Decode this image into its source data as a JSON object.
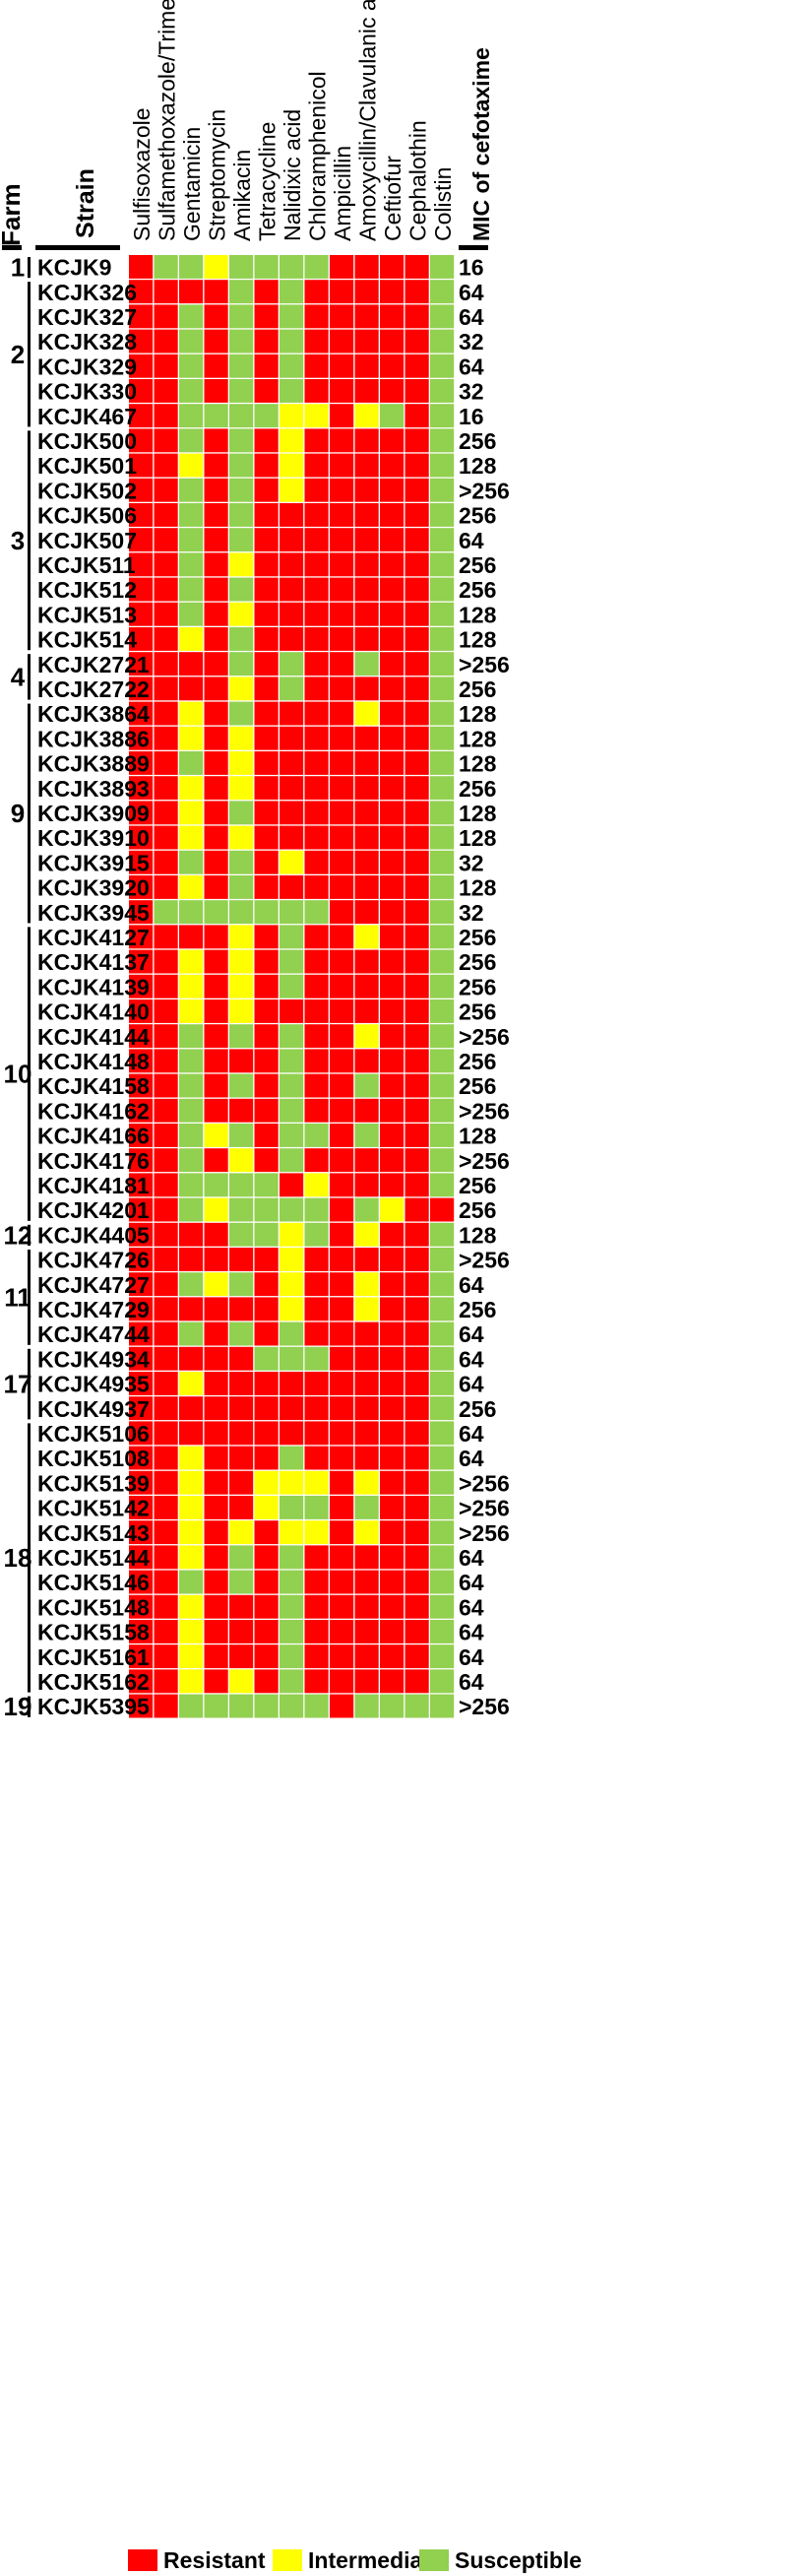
{
  "colors": {
    "Resistant": "#ff0000",
    "Intermediate": "#ffff00",
    "Susceptible": "#92d050",
    "grid": "#ffffff",
    "text": "#000000"
  },
  "headers": {
    "farm": "Farm",
    "strain": "Strain",
    "mic": "MIC of cefotaxime"
  },
  "legend": [
    "Resistant",
    "Intermediate",
    "Susceptible"
  ],
  "chart_data": {
    "type": "heatmap",
    "title": "",
    "code_map": {
      "R": "Resistant",
      "I": "Intermediate",
      "S": "Susceptible"
    },
    "columns": [
      "Sulfisoxazole",
      "Sulfamethoxazole/Trimethoprim",
      "Gentamicin",
      "Streptomycin",
      "Amikacin",
      "Tetracycline",
      "Nalidixic acid",
      "Chloramphenicol",
      "Ampicillin",
      "Amoxycillin/Clavulanic acid",
      "Ceftiofur",
      "Cephalothin",
      "Colistin"
    ],
    "farms": [
      {
        "farm": "1",
        "rows": [
          {
            "strain": "KCJK9",
            "values": "RSSISSSSRRRRS",
            "mic": "16"
          }
        ]
      },
      {
        "farm": "2",
        "rows": [
          {
            "strain": "KCJK326",
            "values": "RRRRSRSRRRRRS",
            "mic": "64"
          },
          {
            "strain": "KCJK327",
            "values": "RRSRSRSRRRRRS",
            "mic": "64"
          },
          {
            "strain": "KCJK328",
            "values": "RRSRSRSRRRRRS",
            "mic": "32"
          },
          {
            "strain": "KCJK329",
            "values": "RRSRSRSRRRRRS",
            "mic": "64"
          },
          {
            "strain": "KCJK330",
            "values": "RRSRSRSRRRRRS",
            "mic": "32"
          },
          {
            "strain": "KCJK467",
            "values": "RRSSSSIIRISRS",
            "mic": "16"
          }
        ]
      },
      {
        "farm": "3",
        "rows": [
          {
            "strain": "KCJK500",
            "values": "RRSRSRIRRRRRS",
            "mic": "256"
          },
          {
            "strain": "KCJK501",
            "values": "RRIRSRIRRRRRS",
            "mic": "128"
          },
          {
            "strain": "KCJK502",
            "values": "RRSRSRIRRRRRS",
            "mic": ">256"
          },
          {
            "strain": "KCJK506",
            "values": "RRSRSRRRRRRRS",
            "mic": "256"
          },
          {
            "strain": "KCJK507",
            "values": "RRSRSRRRRRRRS",
            "mic": "64"
          },
          {
            "strain": "KCJK511",
            "values": "RRSRIRRRRRRRS",
            "mic": "256"
          },
          {
            "strain": "KCJK512",
            "values": "RRSRSRRRRRRRS",
            "mic": "256"
          },
          {
            "strain": "KCJK513",
            "values": "RRSRIRRRRRRRS",
            "mic": "128"
          },
          {
            "strain": "KCJK514",
            "values": "RRIRSRRRRRRRS",
            "mic": "128"
          }
        ]
      },
      {
        "farm": "4",
        "rows": [
          {
            "strain": "KCJK2721",
            "values": "RRRRSRSRRSRRS",
            "mic": ">256"
          },
          {
            "strain": "KCJK2722",
            "values": "RRRRIRSRRRRRS",
            "mic": "256"
          }
        ]
      },
      {
        "farm": "9",
        "rows": [
          {
            "strain": "KCJK3864",
            "values": "RRIRSRRRRIRRS",
            "mic": "128"
          },
          {
            "strain": "KCJK3886",
            "values": "RRIRIRRRRRRRS",
            "mic": "128"
          },
          {
            "strain": "KCJK3889",
            "values": "RRSRIRRRRRRRS",
            "mic": "128"
          },
          {
            "strain": "KCJK3893",
            "values": "RRIRIRRRRRRRS",
            "mic": "256"
          },
          {
            "strain": "KCJK3909",
            "values": "RRIRSRRRRRRRS",
            "mic": "128"
          },
          {
            "strain": "KCJK3910",
            "values": "RRIRIRRRRRRRS",
            "mic": "128"
          },
          {
            "strain": "KCJK3915",
            "values": "RRSRSRIRRRRRS",
            "mic": "32"
          },
          {
            "strain": "KCJK3920",
            "values": "RRIRSRRRRRRRS",
            "mic": "128"
          },
          {
            "strain": "KCJK3945",
            "values": "RSSSSSSSRRRRS",
            "mic": "32"
          }
        ]
      },
      {
        "farm": "10",
        "rows": [
          {
            "strain": "KCJK4127",
            "values": "RRRRIRSRRIRRS",
            "mic": "256"
          },
          {
            "strain": "KCJK4137",
            "values": "RRIRIRSRRRRRS",
            "mic": "256"
          },
          {
            "strain": "KCJK4139",
            "values": "RRIRIRSRRRRRS",
            "mic": "256"
          },
          {
            "strain": "KCJK4140",
            "values": "RRIRIRRRRRRRS",
            "mic": "256"
          },
          {
            "strain": "KCJK4144",
            "values": "RRSRSRSRRIRRS",
            "mic": ">256"
          },
          {
            "strain": "KCJK4148",
            "values": "RRSRRRSRRRRRS",
            "mic": "256"
          },
          {
            "strain": "KCJK4158",
            "values": "RRSRSRSRRSRRS",
            "mic": "256"
          },
          {
            "strain": "KCJK4162",
            "values": "RRSRRRSRRRRRS",
            "mic": ">256"
          },
          {
            "strain": "KCJK4166",
            "values": "RRSISRSSRSRRS",
            "mic": "128"
          },
          {
            "strain": "KCJK4176",
            "values": "RRSRIRSRRRRRS",
            "mic": ">256"
          },
          {
            "strain": "KCJK4181",
            "values": "RRSSSSRIRRRRS",
            "mic": "256"
          },
          {
            "strain": "KCJK4201",
            "values": "RRSISSSSRSIRR",
            "mic": "256"
          }
        ]
      },
      {
        "farm": "12",
        "rows": [
          {
            "strain": "KCJK4405",
            "values": "RRRRSSISRIRRS",
            "mic": "128"
          }
        ]
      },
      {
        "farm": "11",
        "rows": [
          {
            "strain": "KCJK4726",
            "values": "RRRRRRIRRRRRS",
            "mic": ">256"
          },
          {
            "strain": "KCJK4727",
            "values": "RRSISRIRRIRRS",
            "mic": "64"
          },
          {
            "strain": "KCJK4729",
            "values": "RRRRRRIRRIRRS",
            "mic": "256"
          },
          {
            "strain": "KCJK4744",
            "values": "RRSRSRSRRRRRS",
            "mic": "64"
          }
        ]
      },
      {
        "farm": "17",
        "rows": [
          {
            "strain": "KCJK4934",
            "values": "RRRRRSSSRRRRS",
            "mic": "64"
          },
          {
            "strain": "KCJK4935",
            "values": "RRIRRRRRRRRRS",
            "mic": "64"
          },
          {
            "strain": "KCJK4937",
            "values": "RRRRRRRRRRRRS",
            "mic": "256"
          }
        ]
      },
      {
        "farm": "18",
        "rows": [
          {
            "strain": "KCJK5106",
            "values": "RRRRRRRRRRRRS",
            "mic": "64"
          },
          {
            "strain": "KCJK5108",
            "values": "RRIRRRSRRRRRS",
            "mic": "64"
          },
          {
            "strain": "KCJK5139",
            "values": "RRIRRIIIRIRRS",
            "mic": ">256"
          },
          {
            "strain": "KCJK5142",
            "values": "RRIRRISSRSRRS",
            "mic": ">256"
          },
          {
            "strain": "KCJK5143",
            "values": "RRIRIRIIRIRRS",
            "mic": ">256"
          },
          {
            "strain": "KCJK5144",
            "values": "RRIRSRSRRRRRS",
            "mic": "64"
          },
          {
            "strain": "KCJK5146",
            "values": "RRSRSRSRRRRRS",
            "mic": "64"
          },
          {
            "strain": "KCJK5148",
            "values": "RRIRRRSRRRRRS",
            "mic": "64"
          },
          {
            "strain": "KCJK5158",
            "values": "RRIRRRSRRRRRS",
            "mic": "64"
          },
          {
            "strain": "KCJK5161",
            "values": "RRIRRRSRRRRRS",
            "mic": "64"
          },
          {
            "strain": "KCJK5162",
            "values": "RRIRIRSRRRRRS",
            "mic": "64"
          }
        ]
      },
      {
        "farm": "19",
        "rows": [
          {
            "strain": "KCJK5395",
            "values": "RRSSSSSSRSSSS",
            "mic": ">256"
          }
        ]
      }
    ]
  }
}
